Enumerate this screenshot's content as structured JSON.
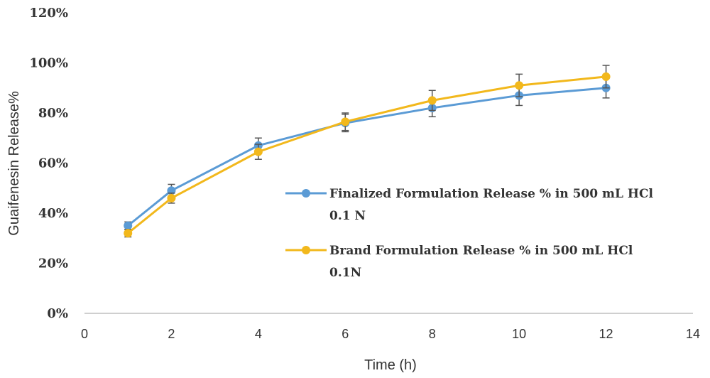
{
  "chart_data": {
    "type": "line",
    "title": "",
    "xlabel": "Time (h)",
    "ylabel": "Guaifenesin Release%",
    "xlim": [
      0,
      14
    ],
    "ylim": [
      0,
      1.2
    ],
    "x_ticks": [
      "0",
      "2",
      "4",
      "6",
      "8",
      "10",
      "12",
      "14"
    ],
    "y_ticks": [
      "0%",
      "20%",
      "40%",
      "60%",
      "80%",
      "100%",
      "120%"
    ],
    "grid": false,
    "legend_position": "center-right",
    "series": [
      {
        "name_lines": [
          "Finalized Formulation Release % in 500 mL HCl",
          "0.1 N"
        ],
        "color": "#5b9bd5",
        "x": [
          1,
          2,
          4,
          6,
          8,
          10,
          12
        ],
        "y": [
          0.35,
          0.49,
          0.67,
          0.76,
          0.82,
          0.87,
          0.9
        ],
        "error": [
          0.015,
          0.025,
          0.03,
          0.035,
          0.035,
          0.04,
          0.04
        ]
      },
      {
        "name_lines": [
          "Brand Formulation Release % in 500 mL HCl",
          "0.1N"
        ],
        "color": "#f2b81c",
        "x": [
          1,
          2,
          4,
          6,
          8,
          10,
          12
        ],
        "y": [
          0.32,
          0.46,
          0.645,
          0.765,
          0.85,
          0.91,
          0.945
        ],
        "error": [
          0.015,
          0.02,
          0.03,
          0.035,
          0.04,
          0.045,
          0.045
        ]
      }
    ]
  }
}
